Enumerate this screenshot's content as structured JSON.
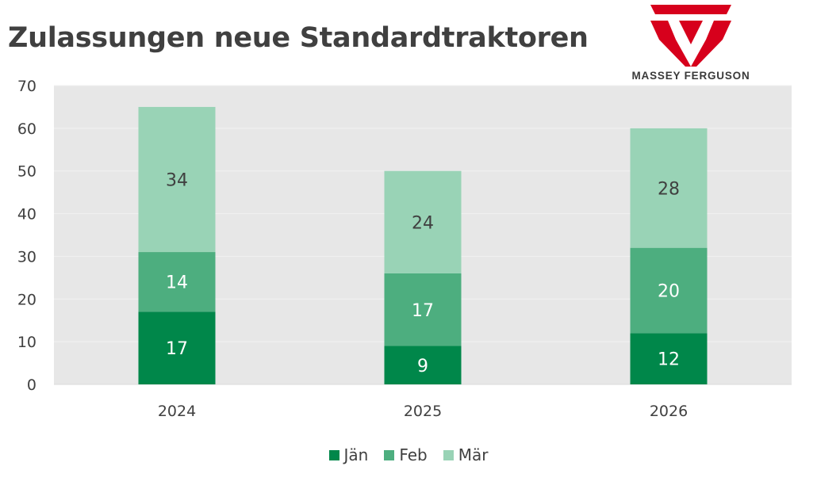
{
  "title": "Zulassungen neue Standardtraktoren",
  "logo": {
    "text": "MASSEY FERGUSON",
    "color": "#d7001c"
  },
  "chart_data": {
    "type": "bar",
    "stacked": true,
    "categories": [
      "2024",
      "2025",
      "2026"
    ],
    "series": [
      {
        "name": "Jän",
        "values": [
          17,
          9,
          12
        ],
        "color": "#00874a",
        "label_color": "#ffffff"
      },
      {
        "name": "Feb",
        "values": [
          14,
          17,
          20
        ],
        "color": "#4dae7f",
        "label_color": "#ffffff"
      },
      {
        "name": "Mär",
        "values": [
          34,
          24,
          28
        ],
        "color": "#99d3b6",
        "label_color": "#404040"
      }
    ],
    "ylim": [
      0,
      70
    ],
    "yticks": [
      "0",
      "10",
      "20",
      "30",
      "40",
      "50",
      "60",
      "70"
    ],
    "grid": true,
    "plot_background": "#e7e7e7",
    "legend_position": "bottom"
  }
}
